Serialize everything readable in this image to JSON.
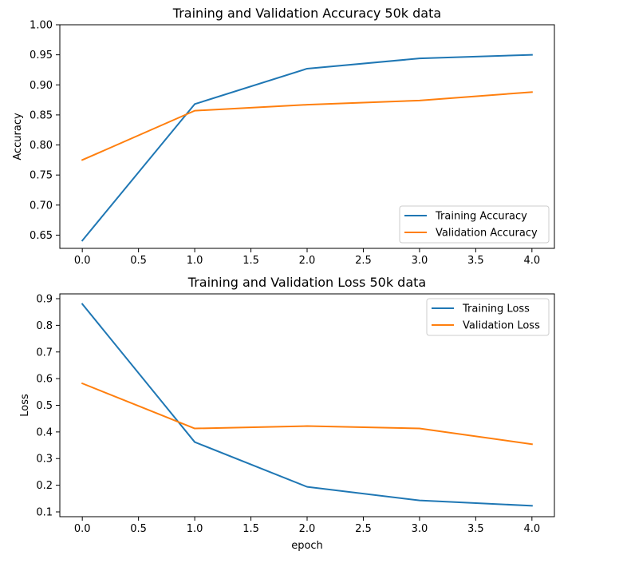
{
  "chart_data": [
    {
      "type": "line",
      "title": "Training and Validation Accuracy 50k data",
      "xlabel": "",
      "ylabel": "Accuracy",
      "x": [
        0,
        1,
        2,
        3,
        4
      ],
      "xlim": [
        -0.2,
        4.2
      ],
      "ylim": [
        0.628,
        1.0
      ],
      "xticks": [
        0.0,
        0.5,
        1.0,
        1.5,
        2.0,
        2.5,
        3.0,
        3.5,
        4.0
      ],
      "xtick_labels": [
        "0.0",
        "0.5",
        "1.0",
        "1.5",
        "2.0",
        "2.5",
        "3.0",
        "3.5",
        "4.0"
      ],
      "yticks": [
        0.65,
        0.7,
        0.75,
        0.8,
        0.85,
        0.9,
        0.95,
        1.0
      ],
      "ytick_labels": [
        "0.65",
        "0.70",
        "0.75",
        "0.80",
        "0.85",
        "0.90",
        "0.95",
        "1.00"
      ],
      "legend_position": "lower right",
      "grid": false,
      "series": [
        {
          "name": "Training Accuracy",
          "color": "#1f77b4",
          "values": [
            0.641,
            0.868,
            0.927,
            0.944,
            0.95
          ]
        },
        {
          "name": "Validation Accuracy",
          "color": "#ff7f0e",
          "values": [
            0.775,
            0.857,
            0.867,
            0.874,
            0.888
          ]
        }
      ]
    },
    {
      "type": "line",
      "title": "Training and Validation Loss 50k data",
      "xlabel": "epoch",
      "ylabel": "Loss",
      "x": [
        0,
        1,
        2,
        3,
        4
      ],
      "xlim": [
        -0.2,
        4.2
      ],
      "ylim": [
        0.082,
        0.918
      ],
      "xticks": [
        0.0,
        0.5,
        1.0,
        1.5,
        2.0,
        2.5,
        3.0,
        3.5,
        4.0
      ],
      "xtick_labels": [
        "0.0",
        "0.5",
        "1.0",
        "1.5",
        "2.0",
        "2.5",
        "3.0",
        "3.5",
        "4.0"
      ],
      "yticks": [
        0.1,
        0.2,
        0.3,
        0.4,
        0.5,
        0.6,
        0.7,
        0.8,
        0.9
      ],
      "ytick_labels": [
        "0.1",
        "0.2",
        "0.3",
        "0.4",
        "0.5",
        "0.6",
        "0.7",
        "0.8",
        "0.9"
      ],
      "legend_position": "upper right",
      "grid": false,
      "series": [
        {
          "name": "Training Loss",
          "color": "#1f77b4",
          "values": [
            0.88,
            0.362,
            0.194,
            0.143,
            0.123
          ]
        },
        {
          "name": "Validation Loss",
          "color": "#ff7f0e",
          "values": [
            0.582,
            0.413,
            0.422,
            0.413,
            0.354
          ]
        }
      ]
    }
  ]
}
